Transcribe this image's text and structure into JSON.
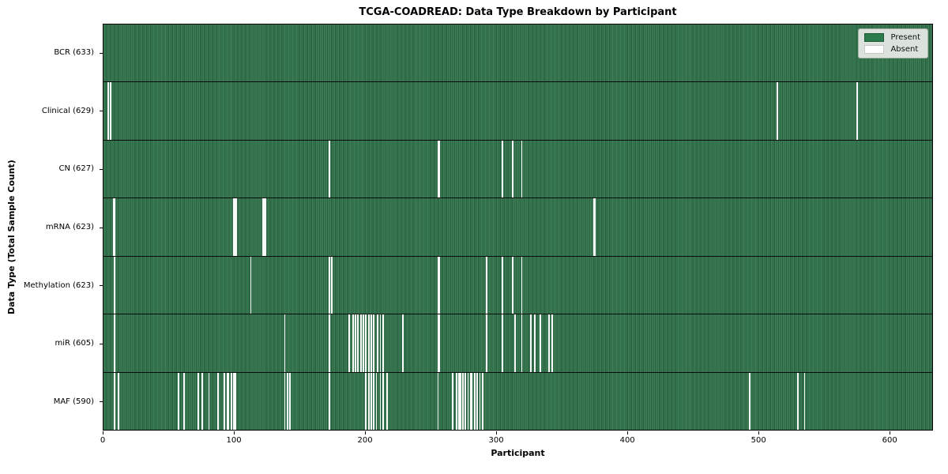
{
  "chart_data": {
    "type": "heatmap",
    "title": "TCGA-COADREAD: Data Type Breakdown by Participant",
    "xlabel": "Participant",
    "ylabel": "Data Type (Total Sample Count)",
    "x_ticks": [
      0,
      100,
      200,
      300,
      400,
      500,
      600
    ],
    "x_max": 633,
    "n_participants": 633,
    "grid": false,
    "colors": {
      "present_base": "#2e7249",
      "present_stripe_light": "#3f7f58",
      "present_stripe_dark": "#27603f",
      "absent": "#fafafa",
      "row_divider": "#0b0b0b",
      "legend_bg": "#dbe2db"
    },
    "legend": {
      "position": "upper right",
      "entries": [
        {
          "label": "Present",
          "color": "#2c7b4d",
          "border": "#1e5835"
        },
        {
          "label": "Absent",
          "color": "#ffffff",
          "border": "#c8c8c8"
        }
      ]
    },
    "rows": [
      {
        "label": "BCR (633)",
        "data_type": "BCR",
        "present_count": 633,
        "absent_count": 0,
        "absent_participants": []
      },
      {
        "label": "Clinical (629)",
        "data_type": "Clinical",
        "present_count": 629,
        "absent_count": 4,
        "absent_participants": [
          3,
          5,
          514,
          575
        ]
      },
      {
        "label": "CN (627)",
        "data_type": "CN",
        "present_count": 627,
        "absent_count": 6,
        "absent_participants": [
          172,
          255,
          256,
          304,
          312,
          319
        ]
      },
      {
        "label": "mRNA (623)",
        "data_type": "mRNA",
        "present_count": 623,
        "absent_count": 10,
        "absent_participants": [
          7,
          8,
          99,
          100,
          101,
          121,
          122,
          123,
          374,
          375
        ]
      },
      {
        "label": "Methylation (623)",
        "data_type": "Methylation",
        "present_count": 623,
        "absent_count": 10,
        "absent_participants": [
          8,
          112,
          172,
          174,
          255,
          256,
          292,
          304,
          312,
          319
        ]
      },
      {
        "label": "miR (605)",
        "data_type": "miR",
        "present_count": 605,
        "absent_count": 28,
        "absent_participants": [
          8,
          138,
          172,
          187,
          190,
          192,
          194,
          196,
          198,
          200,
          202,
          204,
          206,
          209,
          211,
          213,
          228,
          255,
          256,
          292,
          304,
          314,
          319,
          326,
          329,
          333,
          340,
          342
        ]
      },
      {
        "label": "MAF (590)",
        "data_type": "MAF",
        "present_count": 590,
        "absent_count": 43,
        "absent_participants": [
          8,
          11,
          57,
          61,
          72,
          75,
          80,
          87,
          92,
          94,
          95,
          97,
          99,
          100,
          138,
          140,
          142,
          172,
          200,
          202,
          204,
          206,
          208,
          211,
          213,
          216,
          255,
          266,
          269,
          271,
          272,
          274,
          276,
          278,
          280,
          281,
          283,
          285,
          287,
          289,
          493,
          530,
          535
        ]
      }
    ]
  }
}
